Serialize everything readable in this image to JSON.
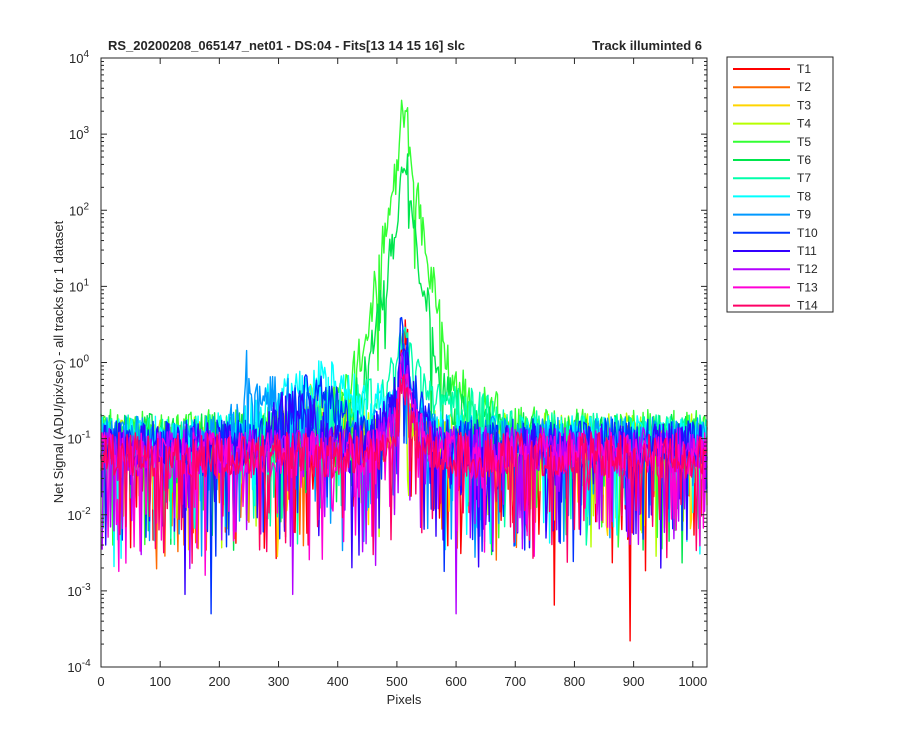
{
  "chart_data": {
    "type": "line",
    "title_left": "RS_20200208_065147_net01 - DS:04 - Fits[13  14  15  16]   slc",
    "title_right": "Track illuminted 6",
    "xlabel": "Pixels",
    "ylabel": "Net Signal (ADU/pix/sec) - all tracks for 1 dataset",
    "xlim": [
      0,
      1024
    ],
    "ylim": [
      0.0001,
      10000
    ],
    "yscale": "log",
    "grid": false,
    "legend_position": "outside-right",
    "x_ticks": [
      "0",
      "100",
      "200",
      "300",
      "400",
      "500",
      "600",
      "700",
      "800",
      "900",
      "1000"
    ],
    "y_ticks": [
      {
        "base": "10",
        "exp": "-4"
      },
      {
        "base": "10",
        "exp": "-3"
      },
      {
        "base": "10",
        "exp": "-2"
      },
      {
        "base": "10",
        "exp": "-1"
      },
      {
        "base": "10",
        "exp": "0"
      },
      {
        "base": "10",
        "exp": "1"
      },
      {
        "base": "10",
        "exp": "2"
      },
      {
        "base": "10",
        "exp": "3"
      },
      {
        "base": "10",
        "exp": "4"
      }
    ],
    "series": [
      {
        "name": "T1",
        "color": "#ff0000",
        "base": 0.07,
        "peak": 0.45,
        "plateau": 2.1,
        "dips": [
          [
            765,
            0.00065
          ],
          [
            893,
            0.00022
          ],
          [
            720,
            0.006
          ]
        ]
      },
      {
        "name": "T2",
        "color": "#ff6a00",
        "base": 0.08,
        "peak": 0.35,
        "plateau": 0.6,
        "dips": [
          [
            140,
            0.004
          ],
          [
            600,
            0.005
          ]
        ]
      },
      {
        "name": "T3",
        "color": "#ffd500",
        "base": 0.09,
        "peak": 0.3,
        "plateau": 0.5,
        "hump": [
          380,
          40,
          0.17
        ],
        "dips": [
          [
            300,
            0.006
          ]
        ]
      },
      {
        "name": "T4",
        "color": "#b7ff00",
        "base": 0.11,
        "peak": 0.4,
        "plateau": 0.6,
        "hump": [
          380,
          50,
          0.22
        ],
        "dips": [
          [
            770,
            0.008
          ]
        ]
      },
      {
        "name": "T5",
        "color": "#33ff33",
        "base": 0.12,
        "peak": 2100,
        "plateau": 2100,
        "wide": [
          60,
          1.2
        ],
        "dips": [
          [
            20,
            0.004
          ]
        ]
      },
      {
        "name": "T6",
        "color": "#00e64d",
        "base": 0.11,
        "peak": 400,
        "plateau": 380,
        "wide": [
          40,
          0.9
        ],
        "dips": [
          [
            660,
            0.003
          ]
        ]
      },
      {
        "name": "T7",
        "color": "#00ffaa",
        "base": 0.1,
        "peak": 3.0,
        "plateau": 3.0,
        "wide": [
          120,
          0.35
        ],
        "dips": [
          [
            820,
            0.004
          ]
        ]
      },
      {
        "name": "T8",
        "color": "#00ffff",
        "base": 0.1,
        "peak": 1.2,
        "plateau": 1.0,
        "hump": [
          370,
          90,
          0.45
        ],
        "dips": [
          [
            210,
            0.007
          ]
        ]
      },
      {
        "name": "T9",
        "color": "#0099ff",
        "base": 0.1,
        "peak": 1.0,
        "plateau": 0.9,
        "hump": [
          300,
          60,
          0.25
        ],
        "spike": [
          248,
          0.85
        ],
        "dips": [
          [
            860,
            0.005
          ]
        ]
      },
      {
        "name": "T10",
        "color": "#0033ff",
        "base": 0.09,
        "peak": 2.0,
        "plateau": 2.0,
        "hump": [
          360,
          50,
          0.3
        ],
        "dips": [
          [
            185,
            0.0005
          ],
          [
            580,
            0.0018
          ]
        ]
      },
      {
        "name": "T11",
        "color": "#3300ff",
        "base": 0.08,
        "peak": 1.5,
        "plateau": 1.2,
        "hump": [
          330,
          40,
          0.18
        ],
        "dips": [
          [
            141,
            0.0009
          ],
          [
            945,
            0.002
          ]
        ]
      },
      {
        "name": "T12",
        "color": "#b300ff",
        "base": 0.07,
        "peak": 0.8,
        "plateau": 0.7,
        "dips": [
          [
            600,
            0.0005
          ],
          [
            323,
            0.0009
          ]
        ]
      },
      {
        "name": "T13",
        "color": "#ff00d5",
        "base": 0.06,
        "peak": 0.7,
        "plateau": 0.5,
        "dips": [
          [
            30,
            0.0018
          ],
          [
            175,
            0.0016
          ]
        ]
      },
      {
        "name": "T14",
        "color": "#ff0066",
        "base": 0.06,
        "peak": 0.5,
        "plateau": 0.4,
        "dips": [
          [
            460,
            0.003
          ],
          [
            350,
            0.004
          ]
        ]
      }
    ]
  }
}
